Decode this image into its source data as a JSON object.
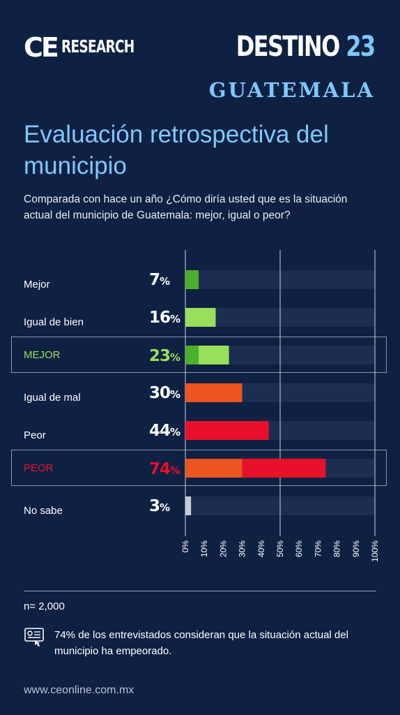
{
  "header": {
    "logo_ce": "CE",
    "logo_research": "RESEARCH",
    "brand_destino": "DESTINO",
    "brand_number": "23",
    "brand_place": "GUATEMALA"
  },
  "title": "Evaluación retrospectiva del municipio",
  "subtitle": "Comparada con hace un año ¿Cómo diría usted que es la situación actual del municipio de Guatemala: mejor, igual o peor?",
  "colors": {
    "background": "#0e2143",
    "track": "#1b2e52",
    "mejor": "#4daf2e",
    "igual_de_bien": "#98df5a",
    "igual_de_mal": "#ec5420",
    "peor": "#e8102a",
    "no_sabe": "#c8ccd2",
    "accent": "#7fc8f8"
  },
  "chart_data": {
    "type": "bar",
    "orientation": "horizontal",
    "categories": [
      "Mejor",
      "Igual de bien",
      "MEJOR",
      "Igual de mal",
      "Peor",
      "PEOR",
      "No sabe"
    ],
    "values": [
      7,
      16,
      23,
      30,
      44,
      74,
      3
    ],
    "value_labels": [
      "7",
      "16",
      "23",
      "30",
      "44",
      "74",
      "3"
    ],
    "percent_sign": "%",
    "stacked_rows": {
      "MEJOR": [
        {
          "part": "Mejor",
          "value": 7
        },
        {
          "part": "Igual de bien",
          "value": 16
        }
      ],
      "PEOR": [
        {
          "part": "Igual de mal",
          "value": 30
        },
        {
          "part": "Peor",
          "value": 44
        }
      ]
    },
    "highlighted": [
      "MEJOR",
      "PEOR"
    ],
    "xlim": [
      0,
      100
    ],
    "xticks": [
      "0%",
      "10%",
      "20%",
      "30%",
      "40%",
      "50%",
      "60%",
      "70%",
      "80%",
      "90%",
      "100%"
    ],
    "gridlines_at": [
      0,
      50,
      100
    ]
  },
  "footer": {
    "sample": "n= 2,000",
    "note": "74% de los entrevistados consideran que la situación actual del municipio ha empeorado.",
    "url": "www.ceonline.com.mx"
  }
}
